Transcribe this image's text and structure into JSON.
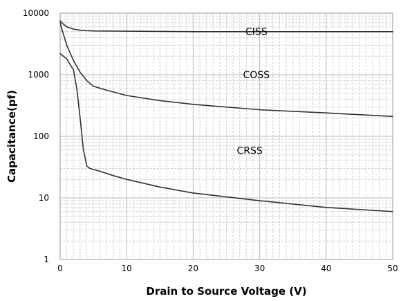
{
  "chart_data": {
    "type": "line",
    "title": "",
    "xlabel": "Drain to Source Voltage (V)",
    "ylabel": "Capacitance(pf)",
    "x_scale": "linear",
    "y_scale": "log",
    "xlim": [
      0,
      50
    ],
    "ylim": [
      1,
      10000
    ],
    "x_ticks": [
      "0",
      "10",
      "20",
      "30",
      "40",
      "50"
    ],
    "y_ticks": [
      "1",
      "10",
      "100",
      "1000",
      "10000"
    ],
    "grid": true,
    "legend": "none",
    "series": [
      {
        "name": "CISS",
        "x": [
          0,
          0.5,
          1,
          2,
          3,
          4,
          5,
          10,
          20,
          30,
          40,
          50
        ],
        "y": [
          7500,
          6600,
          6000,
          5500,
          5300,
          5200,
          5150,
          5100,
          5000,
          5000,
          5000,
          5000
        ]
      },
      {
        "name": "COSS",
        "x": [
          0,
          0.5,
          1,
          2,
          3,
          4,
          5,
          7,
          10,
          15,
          20,
          30,
          40,
          50
        ],
        "y": [
          7000,
          4500,
          3000,
          1700,
          1100,
          800,
          650,
          560,
          460,
          380,
          330,
          270,
          240,
          210
        ]
      },
      {
        "name": "CRSS",
        "x": [
          0,
          1,
          2,
          2.5,
          3,
          3.5,
          4,
          4.5,
          5,
          6,
          8,
          10,
          15,
          20,
          30,
          40,
          50
        ],
        "y": [
          2200,
          1800,
          1200,
          600,
          200,
          60,
          33,
          30,
          29,
          27,
          23,
          20,
          15,
          12,
          9,
          7,
          6
        ]
      }
    ],
    "series_colors": [
      "#303030",
      "#303030",
      "#303030"
    ]
  }
}
